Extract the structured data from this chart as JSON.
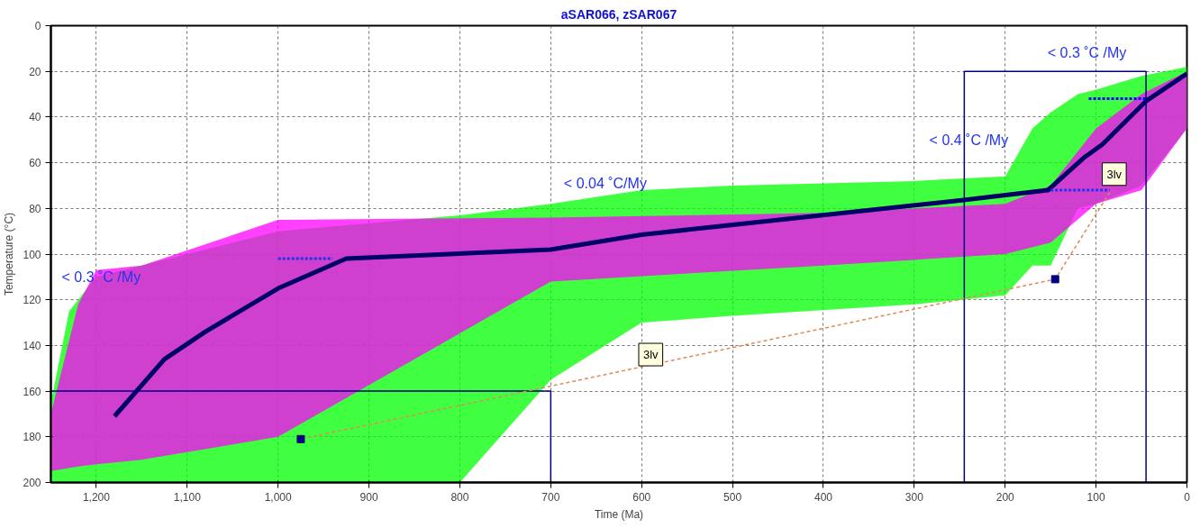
{
  "chart_data": {
    "type": "line",
    "title": "aSAR066, zSAR067",
    "xlabel": "Time (Ma)",
    "ylabel": "Temperature (°C)",
    "xlim": [
      1250,
      0
    ],
    "ylim": [
      200,
      0
    ],
    "xticks": [
      {
        "value": 1200,
        "label": "1,200"
      },
      {
        "value": 1100,
        "label": "1,100"
      },
      {
        "value": 1000,
        "label": "1,000"
      },
      900,
      800,
      700,
      600,
      500,
      400,
      300,
      200,
      100,
      0
    ],
    "yticks": [
      0,
      20,
      40,
      60,
      80,
      100,
      120,
      140,
      160,
      180,
      200
    ],
    "grid": true,
    "series": [
      {
        "type": "area",
        "color": "#00ff00",
        "x": [
          1250,
          1230,
          1200,
          1100,
          1000,
          800,
          700,
          600,
          500,
          300,
          250,
          200,
          170,
          150,
          120,
          100,
          50,
          0
        ],
        "values": [
          null,
          null,
          null,
          null,
          null,
          null,
          null,
          null,
          null,
          null,
          null,
          null,
          null,
          null,
          null,
          null,
          null,
          null
        ],
        "upper": [
          165,
          125,
          110,
          100,
          90,
          83,
          78,
          72,
          70,
          68,
          67,
          66,
          45,
          38,
          30,
          28,
          22,
          18
        ],
        "lower": [
          200,
          200,
          200,
          200,
          200,
          200,
          155,
          130,
          127,
          122,
          120,
          118,
          105,
          105,
          80,
          78,
          70,
          45
        ]
      },
      {
        "type": "area",
        "color": "#ff00ff",
        "x": [
          1250,
          1220,
          1200,
          1150,
          1000,
          700,
          400,
          200,
          150,
          100,
          50,
          0
        ],
        "values": [
          null,
          null,
          null,
          null,
          null,
          null,
          null,
          null,
          null,
          null,
          null,
          null
        ],
        "upper": [
          170,
          122,
          107,
          105,
          85,
          84,
          82,
          78,
          70,
          45,
          30,
          20
        ],
        "lower": [
          195,
          193,
          192,
          190,
          180,
          112,
          105,
          100,
          95,
          78,
          72,
          45
        ]
      },
      {
        "color": "#000066",
        "x": [
          1180,
          1125,
          1080,
          1000,
          925,
          700,
          600,
          250,
          153,
          114,
          93,
          45,
          0
        ],
        "values": [
          171,
          146,
          134,
          115,
          102,
          98,
          91.5,
          76.5,
          72,
          58,
          52,
          33,
          21
        ]
      },
      {
        "type": "line",
        "color": "#000080",
        "line_style": "solid",
        "x": [
          1250,
          700,
          700,
          1250
        ],
        "values": [
          160,
          160,
          200,
          200
        ]
      },
      {
        "type": "line",
        "color": "#000080",
        "line_style": "solid",
        "x": [
          245,
          245,
          45,
          45
        ],
        "values": [
          200,
          20,
          20,
          200
        ]
      },
      {
        "type": "line",
        "color": "#2233ee",
        "line_style": "dotted",
        "x": [
          1000,
          940
        ],
        "values": [
          102,
          102
        ]
      },
      {
        "type": "line",
        "color": "#0000ff",
        "line_style": "dotted",
        "x": [
          108,
          45
        ],
        "values": [
          32,
          32
        ]
      },
      {
        "type": "line",
        "color": "#2233ee",
        "line_style": "dotted",
        "x": [
          150,
          85
        ],
        "values": [
          72,
          72
        ]
      },
      {
        "type": "line",
        "color": "#e08a5a",
        "line_style": "dashed",
        "x": [
          975,
          145,
          85
        ],
        "values": [
          181,
          111,
          73
        ]
      },
      {
        "type": "scatter",
        "color": "#000080",
        "marker": "square",
        "x": [
          975,
          145
        ],
        "values": [
          181,
          111
        ]
      }
    ],
    "annotations": [
      "< 0.3 ˚C /My",
      "< 0.04 ˚C/My",
      "< 0.4 ˚C /My",
      "< 0.3 ˚C /My",
      "3lv",
      "3lv"
    ]
  }
}
